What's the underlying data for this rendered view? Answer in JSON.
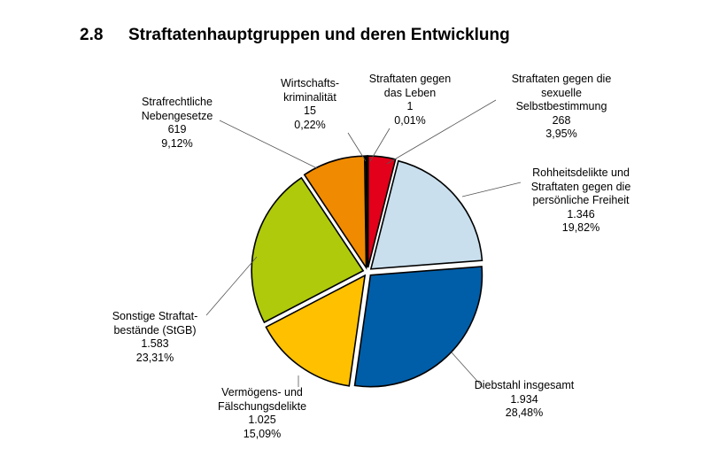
{
  "title": {
    "number": "2.8",
    "text": "Straftatenhauptgruppen und deren Entwicklung"
  },
  "chart_data": {
    "type": "pie",
    "title": "Straftatenhauptgruppen und deren Entwicklung",
    "slices": [
      {
        "label_lines": [
          "Straftaten gegen",
          "das Leben"
        ],
        "value": 1,
        "value_text": "1",
        "percent_text": "0,01%",
        "color": "#000000"
      },
      {
        "label_lines": [
          "Straftaten gegen die",
          "sexuelle",
          "Selbstbestimmung"
        ],
        "value": 268,
        "value_text": "268",
        "percent_text": "3,95%",
        "color": "#e2001a"
      },
      {
        "label_lines": [
          "Rohheitsdelikte und",
          "Straftaten gegen die",
          "persönliche Freiheit"
        ],
        "value": 1346,
        "value_text": "1.346",
        "percent_text": "19,82%",
        "color": "#c9dfee"
      },
      {
        "label_lines": [
          "Diebstahl insgesamt"
        ],
        "value": 1934,
        "value_text": "1.934",
        "percent_text": "28,48%",
        "color": "#005ea8"
      },
      {
        "label_lines": [
          "Vermögens- und",
          "Fälschungsdelikte"
        ],
        "value": 1025,
        "value_text": "1.025",
        "percent_text": "15,09%",
        "color": "#ffc000"
      },
      {
        "label_lines": [
          "Sonstige Straftat-",
          "bestände (StGB)"
        ],
        "value": 1583,
        "value_text": "1.583",
        "percent_text": "23,31%",
        "color": "#afca0b"
      },
      {
        "label_lines": [
          "Strafrechtliche",
          "Nebengesetze"
        ],
        "value": 619,
        "value_text": "619",
        "percent_text": "9,12%",
        "color": "#f08a00"
      },
      {
        "label_lines": [
          "Wirtschafts-",
          "kriminalität"
        ],
        "value": 15,
        "value_text": "15",
        "percent_text": "0,22%",
        "color": "#1a1a1a"
      }
    ]
  }
}
